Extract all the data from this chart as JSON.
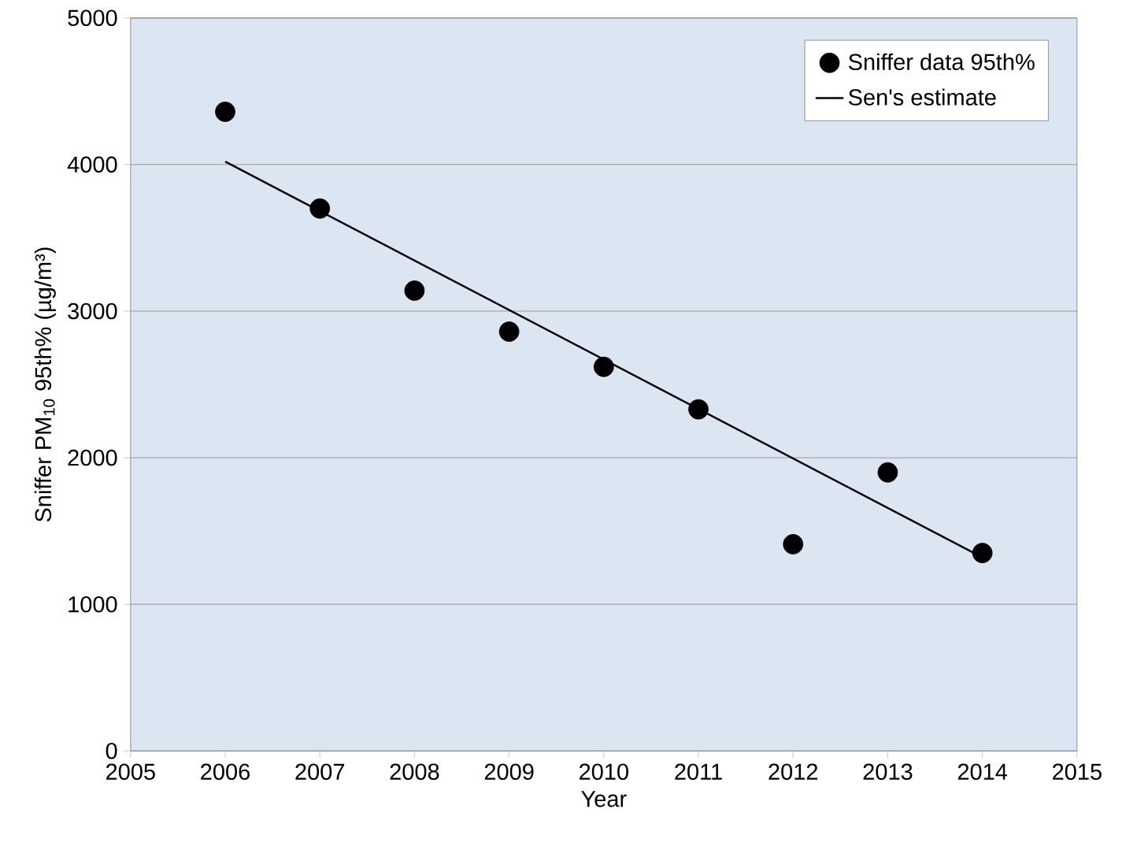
{
  "chart_data": {
    "type": "scatter",
    "xlabel": "Year",
    "ylabel": "Sniffer PM$_{10}$ 95th% (µg/m³)",
    "xlim": [
      2005,
      2015
    ],
    "xticks": [
      2005,
      2006,
      2007,
      2008,
      2009,
      2010,
      2011,
      2012,
      2013,
      2014,
      2015
    ],
    "ylim": [
      0,
      5000
    ],
    "yticks": [
      0,
      1000,
      2000,
      3000,
      4000,
      5000
    ],
    "grid": "y",
    "legend": "top right",
    "series": [
      {
        "name": "Sniffer data 95th%",
        "marker": "circle",
        "color": "#000000",
        "x": [
          2006,
          2007,
          2008,
          2009,
          2010,
          2011,
          2012,
          2013,
          2014
        ],
        "values": [
          4360,
          3700,
          3140,
          2860,
          2620,
          2330,
          1410,
          1900,
          1350
        ]
      },
      {
        "name": "Sen's estimate",
        "type": "line",
        "marker": "none",
        "line_style": "solid",
        "color": "#000000",
        "x": [
          2006,
          2014
        ],
        "values": [
          4020,
          1320
        ]
      }
    ]
  }
}
